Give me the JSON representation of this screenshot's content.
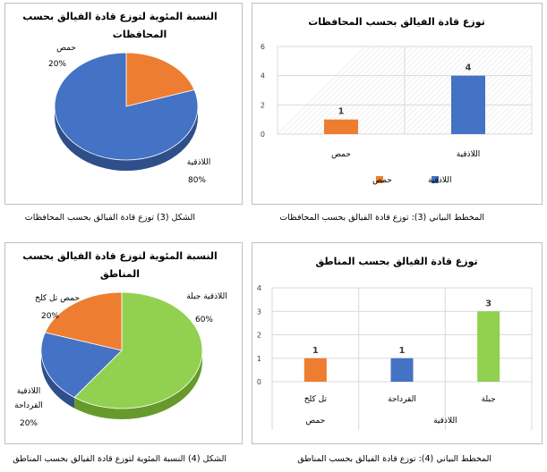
{
  "colors": {
    "blue": "#4472c4",
    "orange": "#ed7d31",
    "green": "#92d050",
    "text": "#404040",
    "grid": "#d9d9d9",
    "pie_side_blue": "#2f4f8a",
    "pie_side_orange": "#b35a1f",
    "pie_side_green": "#669a2a"
  },
  "captions": {
    "top_right": "المخطط البياني (3): توزع قادة الفيالق بحسب المحافظات",
    "top_left": "الشكل (3) توزع قادة الفيالق بحسب المحافظات",
    "bottom_right": "المخطط البياني (4): توزع قادة الفيالق بحسب المناطق",
    "bottom_left": "الشكل (4) النسبة المئوية لتوزع قادة الفيالق بحسب المناطق"
  },
  "chart_data": [
    {
      "id": "bar_governorates",
      "type": "bar",
      "title": "توزع قادة الفيالق بحسب المحافظات",
      "categories": [
        "اللاذقية",
        "حمص"
      ],
      "values": [
        4,
        1
      ],
      "data_labels": [
        "4",
        "1"
      ],
      "ylim": [
        0,
        6
      ],
      "yticks": [
        "0",
        "2",
        "4",
        "6"
      ],
      "legend": [
        {
          "name": "اللاذقية",
          "color": "#4472c4"
        },
        {
          "name": "حمص",
          "color": "#ed7d31"
        }
      ],
      "legend_position": "bottom",
      "grid": true
    },
    {
      "id": "pie_governorates",
      "type": "pie",
      "title": "النسبة المئوية لتوزع قادة الفيالق بحسب المحافظات",
      "slices": [
        {
          "name": "حمص",
          "percent_label": "20%",
          "value": 20,
          "color": "#ed7d31"
        },
        {
          "name": "اللاذقية",
          "percent_label": "80%",
          "value": 80,
          "color": "#4472c4"
        }
      ]
    },
    {
      "id": "bar_regions",
      "type": "bar",
      "title": "توزع قادة الفيالق بحسب المناطق",
      "categories": [
        "جبلة",
        "القرداحة",
        "تل كلخ"
      ],
      "groups": [
        "اللاذقية",
        "حمص"
      ],
      "values": [
        3,
        1,
        1
      ],
      "data_labels": [
        "3",
        "1",
        "1"
      ],
      "bar_colors": [
        "#92d050",
        "#4472c4",
        "#ed7d31"
      ],
      "ylim": [
        0,
        4
      ],
      "yticks": [
        "0",
        "1",
        "2",
        "3",
        "4"
      ],
      "grid": true
    },
    {
      "id": "pie_regions",
      "type": "pie",
      "title": "النسبة المئوية لتوزع قادة الفيالق بحسب المناطق",
      "slices": [
        {
          "name": "اللاذقية جبلة",
          "percent_label": "60%",
          "value": 60,
          "color": "#92d050"
        },
        {
          "name": "اللاذقية القرداحة",
          "percent_label": "20%",
          "value": 20,
          "color": "#4472c4"
        },
        {
          "name": "حمص تل كلخ",
          "percent_label": "20%",
          "value": 20,
          "color": "#ed7d31"
        }
      ]
    }
  ]
}
